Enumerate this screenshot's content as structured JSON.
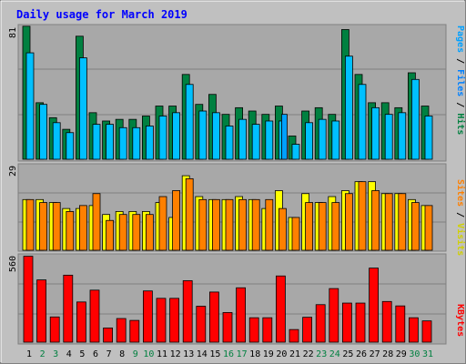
{
  "chart_data": [
    {
      "type": "bar",
      "panel": "hits_files_pages",
      "title": "Daily usage for March 2019",
      "ymax_label": "81",
      "ylim": [
        0,
        81
      ],
      "legend": [
        "Pages",
        "Files",
        "Hits"
      ],
      "categories": [
        "1",
        "2",
        "3",
        "4",
        "5",
        "6",
        "7",
        "8",
        "9",
        "10",
        "11",
        "12",
        "13",
        "14",
        "15",
        "16",
        "17",
        "18",
        "19",
        "20",
        "21",
        "22",
        "23",
        "24",
        "25",
        "26",
        "27",
        "28",
        "29",
        "30",
        "31"
      ],
      "series": [
        {
          "name": "Hits",
          "values": [
            80,
            34,
            25,
            18,
            74,
            28,
            23,
            24,
            24,
            26,
            32,
            32,
            51,
            33,
            39,
            27,
            31,
            29,
            27,
            32,
            14,
            29,
            31,
            27,
            78,
            51,
            34,
            34,
            31,
            52,
            32
          ]
        },
        {
          "name": "Files",
          "values": [
            64,
            33,
            22,
            16,
            61,
            21,
            21,
            19,
            19,
            20,
            26,
            28,
            45,
            29,
            28,
            20,
            24,
            21,
            23,
            23,
            9,
            22,
            24,
            23,
            62,
            45,
            31,
            27,
            28,
            48,
            26
          ]
        },
        {
          "name": "Pages",
          "values": [
            0,
            0,
            0,
            0,
            0,
            0,
            0,
            0,
            0,
            0,
            0,
            0,
            0,
            0,
            0,
            0,
            0,
            0,
            0,
            27,
            0,
            0,
            0,
            0,
            0,
            0,
            0,
            0,
            0,
            0,
            0
          ]
        }
      ],
      "colors": {
        "Hits": "#008040",
        "Files": "#00C0FF",
        "Pages": "#00A0FF"
      }
    },
    {
      "type": "bar",
      "panel": "sites_visits",
      "ymax_label": "29",
      "ylim": [
        0,
        29
      ],
      "legend": [
        "Sites",
        "Visits"
      ],
      "categories": [
        "1",
        "2",
        "3",
        "4",
        "5",
        "6",
        "7",
        "8",
        "9",
        "10",
        "11",
        "12",
        "13",
        "14",
        "15",
        "16",
        "17",
        "18",
        "19",
        "20",
        "21",
        "22",
        "23",
        "24",
        "25",
        "26",
        "27",
        "28",
        "29",
        "30",
        "31"
      ],
      "series": [
        {
          "name": "Visits",
          "values": [
            17,
            17,
            16,
            14,
            14,
            15,
            12,
            13,
            13,
            13,
            16,
            11,
            25,
            18,
            17,
            17,
            18,
            17,
            14,
            20,
            11,
            19,
            16,
            18,
            20,
            23,
            23,
            19,
            19,
            17,
            15
          ]
        },
        {
          "name": "Sites",
          "values": [
            17,
            16,
            16,
            13,
            15,
            19,
            10,
            12,
            12,
            12,
            18,
            20,
            24,
            17,
            17,
            17,
            17,
            17,
            17,
            14,
            11,
            16,
            16,
            16,
            19,
            23,
            20,
            19,
            19,
            16,
            15
          ]
        }
      ],
      "colors": {
        "Visits": "#FFFF00",
        "Sites": "#FF8000"
      }
    },
    {
      "type": "bar",
      "panel": "kbytes",
      "ymax_label": "560",
      "ylim": [
        0,
        560
      ],
      "legend": [
        "KBytes"
      ],
      "categories": [
        "1",
        "2",
        "3",
        "4",
        "5",
        "6",
        "7",
        "8",
        "9",
        "10",
        "11",
        "12",
        "13",
        "14",
        "15",
        "16",
        "17",
        "18",
        "19",
        "20",
        "21",
        "22",
        "23",
        "24",
        "25",
        "26",
        "27",
        "28",
        "29",
        "30",
        "31"
      ],
      "series": [
        {
          "name": "KBytes",
          "values": [
            545,
            395,
            160,
            425,
            255,
            330,
            90,
            150,
            138,
            325,
            278,
            278,
            390,
            228,
            318,
            188,
            345,
            155,
            155,
            420,
            80,
            158,
            238,
            340,
            248,
            248,
            470,
            258,
            230,
            155,
            135
          ]
        }
      ],
      "colors": {
        "KBytes": "#FF0000"
      }
    }
  ],
  "x_labels": [
    "1",
    "2",
    "3",
    "4",
    "5",
    "6",
    "7",
    "8",
    "9",
    "10",
    "11",
    "12",
    "13",
    "14",
    "15",
    "16",
    "17",
    "18",
    "19",
    "20",
    "21",
    "22",
    "23",
    "24",
    "25",
    "26",
    "27",
    "28",
    "29",
    "30",
    "31"
  ],
  "weekend_days": [
    "2",
    "3",
    "9",
    "10",
    "16",
    "17",
    "23",
    "24",
    "30",
    "31"
  ],
  "colors": {
    "title": "#0000FF",
    "weekend": "#008040",
    "weekday": "#000000",
    "separator": "#000000"
  }
}
